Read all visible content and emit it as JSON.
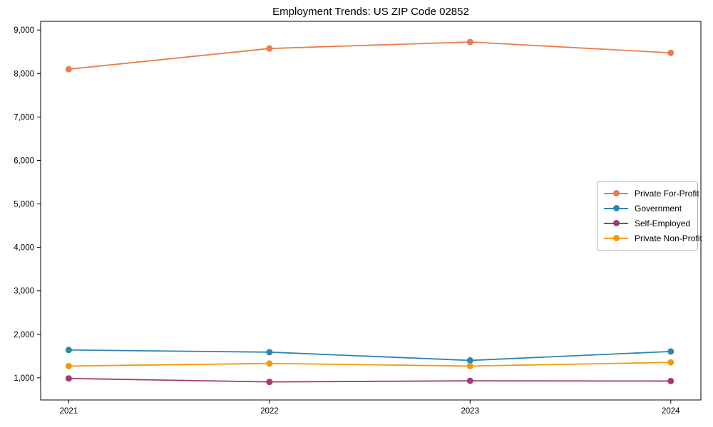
{
  "title": "Employment Trends: US ZIP Code 02852",
  "chart_data": {
    "type": "line",
    "x": [
      2021,
      2022,
      2023,
      2024
    ],
    "x_tick_labels": [
      "2021",
      "2022",
      "2023",
      "2024"
    ],
    "y_ticks": [
      1000,
      2000,
      3000,
      4000,
      5000,
      6000,
      7000,
      8000,
      9000
    ],
    "y_tick_labels": [
      "1,000",
      "2,000",
      "3,000",
      "4,000",
      "5,000",
      "6,000",
      "7,000",
      "8,000",
      "9,000"
    ],
    "xlim": [
      2020.86,
      2024.15
    ],
    "ylim": [
      490,
      9200
    ],
    "grid": false,
    "legend_position": "center-right",
    "marker": "circle",
    "series": [
      {
        "name": "Private For-Profit",
        "color": "#EA7D4A",
        "values": [
          8100,
          8575,
          8725,
          8475
        ]
      },
      {
        "name": "Government",
        "color": "#2E86AB",
        "values": [
          1640,
          1590,
          1400,
          1605
        ]
      },
      {
        "name": "Self-Employed",
        "color": "#A23B72",
        "values": [
          985,
          905,
          930,
          925
        ]
      },
      {
        "name": "Private Non-Profit",
        "color": "#F49908",
        "values": [
          1270,
          1330,
          1270,
          1355
        ]
      }
    ]
  },
  "axes": {
    "x_label": "",
    "y_label": ""
  }
}
